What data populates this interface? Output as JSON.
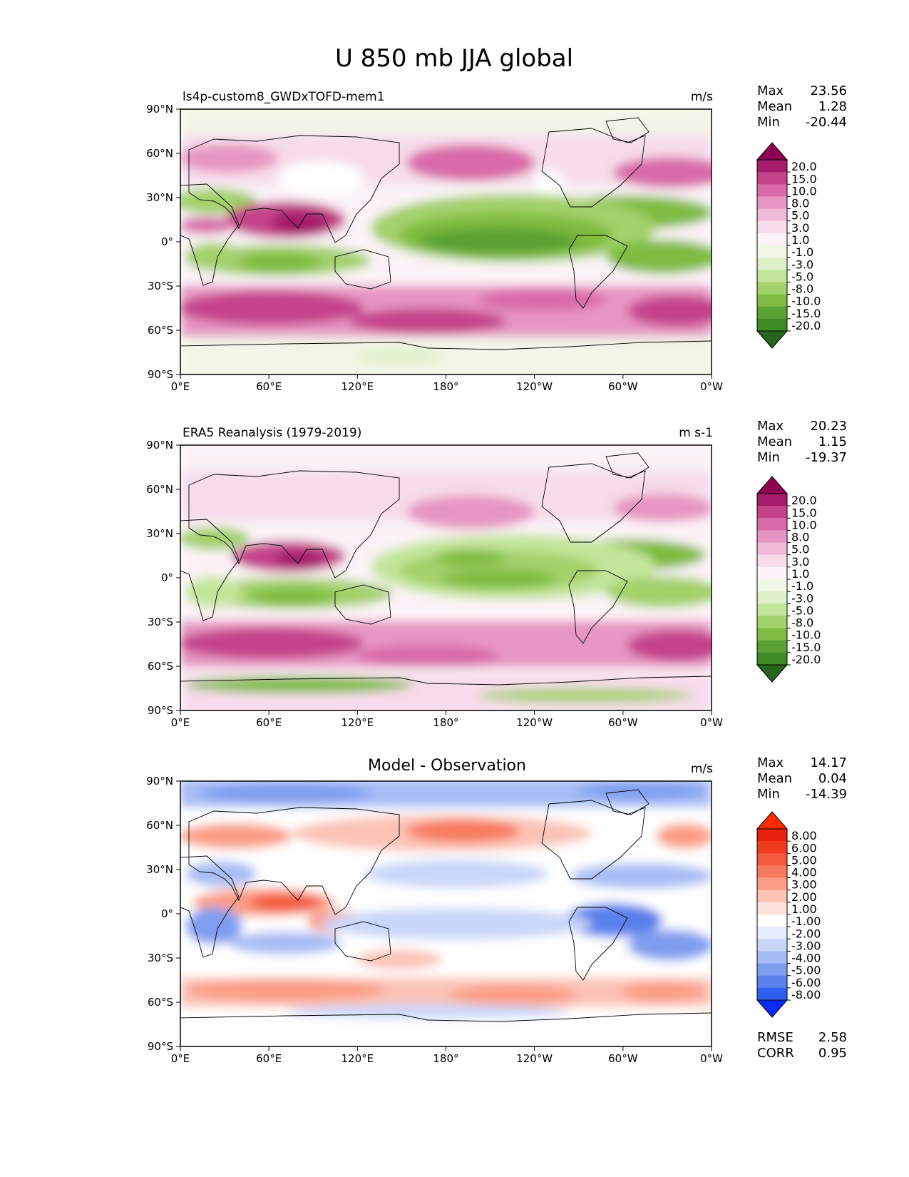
{
  "figure": {
    "title": "U 850 mb JJA global"
  },
  "axes": {
    "x_tick_labels": [
      "0°E",
      "60°E",
      "120°E",
      "180°",
      "120°W",
      "60°W",
      "0°W"
    ],
    "y_tick_labels": [
      "90°N",
      "60°N",
      "30°N",
      "0°",
      "30°S",
      "60°S",
      "90°S"
    ]
  },
  "colors": {
    "diverging_pg": [
      "#27641e",
      "#3e8a25",
      "#5aa133",
      "#7fbc41",
      "#a3d16a",
      "#c3e59a",
      "#dff0c8",
      "#f0f7e6",
      "#fbf3f7",
      "#f7dcea",
      "#f1bbd8",
      "#e795c2",
      "#d96aa8",
      "#c4428a",
      "#a41c6a",
      "#8e0152"
    ],
    "diverging_br": [
      "#0a2bff",
      "#2f5ef0",
      "#5a80ec",
      "#7f9ef0",
      "#a7bcf5",
      "#c9d6fa",
      "#e6ecfd",
      "#ffffff",
      "#fde2dc",
      "#fcc3b5",
      "#fb9d86",
      "#f77a5e",
      "#f35a3d",
      "#ef3a1e",
      "#e8220c",
      "#ff2a00"
    ]
  },
  "chart_data": [
    {
      "type": "heatmap",
      "title": "ls4p-custom8_GWDxTOFD-mem1",
      "units": "m/s",
      "stats": {
        "max_label": "Max",
        "max": "23.56",
        "mean_label": "Mean",
        "mean": "1.28",
        "min_label": "Min",
        "min": "-20.44"
      },
      "colorbar_levels": [
        "20.0",
        "15.0",
        "10.0",
        "8.0",
        "5.0",
        "3.0",
        "1.0",
        "-1.0",
        "-3.0",
        "-5.0",
        "-8.0",
        "-10.0",
        "-15.0",
        "-20.0"
      ],
      "xlim": [
        0,
        360
      ],
      "ylim": [
        -90,
        90
      ],
      "field_summary": "easterlies (green) in tropics, westerlies (pink) in mid-latitudes; strong westerly jets near 45S-55S and Somali jet over Arabian Sea"
    },
    {
      "type": "heatmap",
      "title": "ERA5 Reanalysis (1979-2019)",
      "units": "m s-1",
      "stats": {
        "max_label": "Max",
        "max": "20.23",
        "mean_label": "Mean",
        "mean": "1.15",
        "min_label": "Min",
        "min": "-19.37"
      },
      "colorbar_levels": [
        "20.0",
        "15.0",
        "10.0",
        "8.0",
        "5.0",
        "3.0",
        "1.0",
        "-1.0",
        "-3.0",
        "-5.0",
        "-8.0",
        "-10.0",
        "-15.0",
        "-20.0"
      ],
      "xlim": [
        0,
        360
      ],
      "ylim": [
        -90,
        90
      ],
      "field_summary": "observed 850 mb zonal wind, similar pattern with slightly weaker jets"
    },
    {
      "type": "heatmap",
      "title": "Model - Observation",
      "units": "m/s",
      "stats": {
        "max_label": "Max",
        "max": "14.17",
        "mean_label": "Mean",
        "mean": "0.04",
        "min_label": "Min",
        "min": "-14.39"
      },
      "colorbar_levels": [
        "8.00",
        "6.00",
        "5.00",
        "4.00",
        "3.00",
        "2.00",
        "1.00",
        "-1.00",
        "-2.00",
        "-3.00",
        "-4.00",
        "-5.00",
        "-6.00",
        "-8.00"
      ],
      "extra_stats": {
        "rmse_label": "RMSE",
        "rmse": "2.58",
        "corr_label": "CORR",
        "corr": "0.95"
      },
      "xlim": [
        0,
        360
      ],
      "ylim": [
        -90,
        90
      ],
      "field_summary": "difference field: positive (red) near 60N and 45S, negative (blue) in tropics and polar regions"
    }
  ]
}
